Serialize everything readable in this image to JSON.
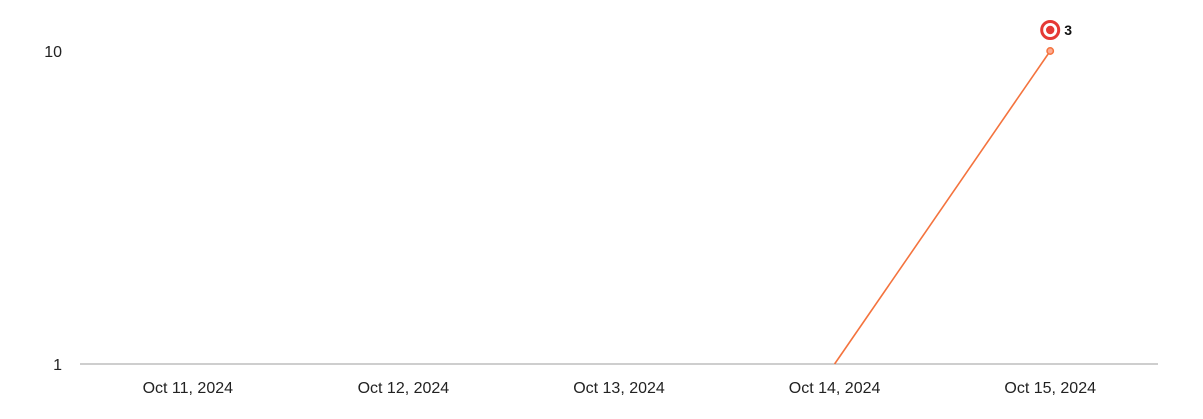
{
  "chart_data": {
    "type": "line",
    "title": "",
    "xlabel": "",
    "ylabel": "",
    "y_scale": "log",
    "ylim": [
      1,
      10
    ],
    "y_ticks": [
      {
        "value": 10,
        "label": "10"
      },
      {
        "value": 1,
        "label": "1"
      }
    ],
    "categories": [
      "Oct 11, 2024",
      "Oct 12, 2024",
      "Oct 13, 2024",
      "Oct 14, 2024",
      "Oct 15, 2024"
    ],
    "series": [
      {
        "color": "#f4733e",
        "values": [
          null,
          null,
          null,
          1,
          10
        ]
      }
    ],
    "annotations": [
      {
        "category": "Oct 15, 2024",
        "label": "3",
        "icon": "target-icon",
        "color": "#e53935"
      }
    ],
    "grid": false,
    "legend": "none"
  }
}
